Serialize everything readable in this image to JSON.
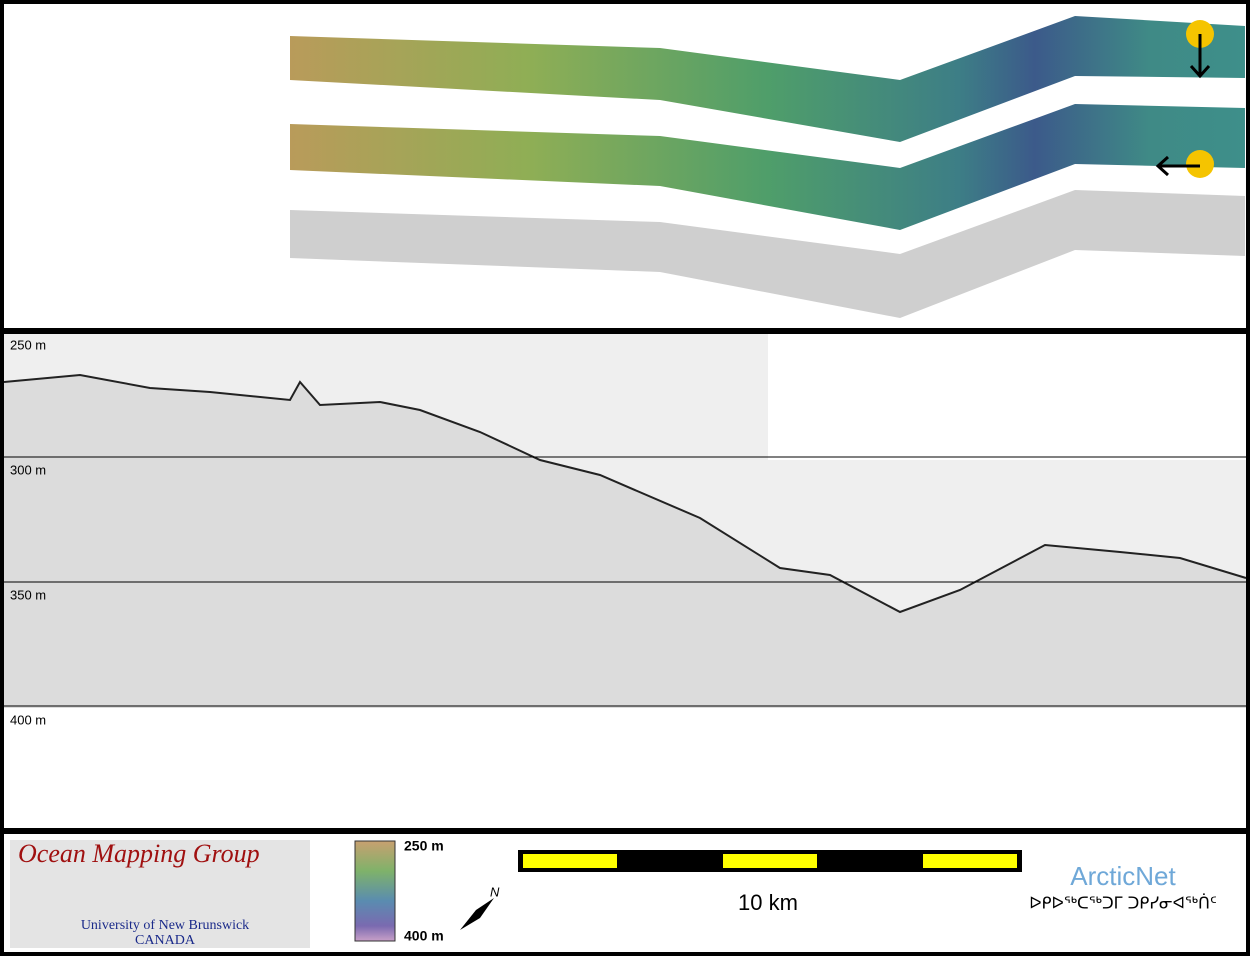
{
  "profile": {
    "depth_labels": [
      "250 m",
      "300 m",
      "350 m",
      "400 m"
    ]
  },
  "legend": {
    "logo": {
      "title": "Ocean Mapping Group",
      "university": "University of New Brunswick",
      "country": "CANADA"
    },
    "colorbar": {
      "top": "250 m",
      "bottom": "400 m"
    },
    "north": "N",
    "scale_bar": "10 km",
    "partner": {
      "name": "ArcticNet",
      "name_inuktitut": "ᐅᑭᐅᖅᑕᖅᑐᒥ ᑐᑭᓯᓂᐊᖅᑏᑦ"
    }
  }
}
